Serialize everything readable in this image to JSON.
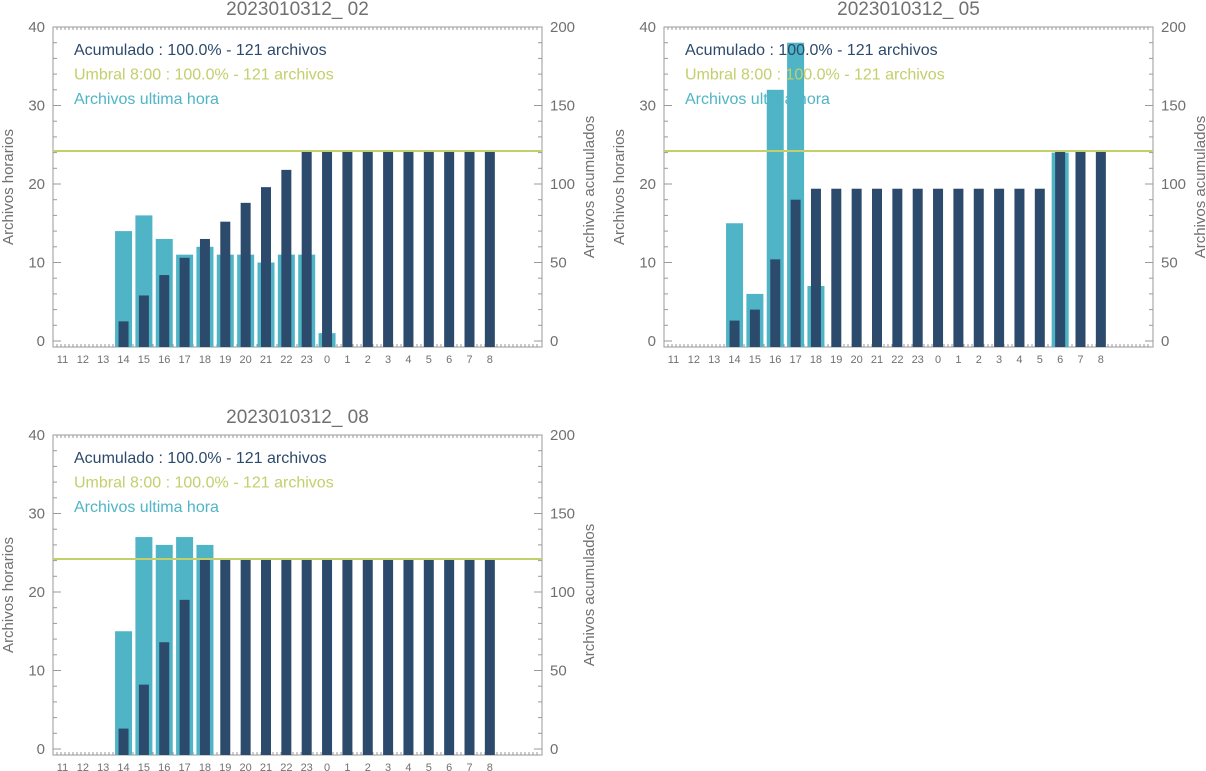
{
  "colors": {
    "hourly": "#4fb5c6",
    "cumulative": "#2c4a6b",
    "threshold": "#c3cf6b",
    "axis": "#9a9a9a",
    "text": "#707070"
  },
  "chart_data": [
    {
      "type": "bar",
      "title": "2023010312_ 02",
      "ylabel_left": "Archivos horarios",
      "ylabel_right": "Archivos acumulados",
      "ylim_left": [
        0,
        40
      ],
      "ylim_right": [
        0,
        200
      ],
      "yticks_left": [
        "0",
        "10",
        "20",
        "30",
        "40"
      ],
      "yticks_right": [
        "0",
        "50",
        "100",
        "150",
        "200"
      ],
      "categories": [
        "11",
        "12",
        "13",
        "14",
        "15",
        "16",
        "17",
        "18",
        "19",
        "20",
        "21",
        "22",
        "23",
        "0",
        "1",
        "2",
        "3",
        "4",
        "5",
        "6",
        "7",
        "8"
      ],
      "legend": [
        {
          "label": "Acumulado : 100.0% - 121 archivos",
          "color_key": "cumulative"
        },
        {
          "label": "Umbral 8:00 : 100.0% - 121 archivos",
          "color_key": "threshold"
        },
        {
          "label": "Archivos ultima hora",
          "color_key": "hourly"
        }
      ],
      "threshold_cumulative": 121,
      "series": [
        {
          "name": "Archivos ultima hora",
          "axis": "left",
          "values": [
            0,
            0,
            0,
            14,
            16,
            13,
            11,
            12,
            11,
            11,
            10,
            11,
            11,
            1,
            0,
            0,
            0,
            0,
            0,
            0,
            0,
            0
          ]
        },
        {
          "name": "Acumulado",
          "axis": "right",
          "values": [
            0,
            0,
            0,
            12.5,
            29,
            42,
            53,
            65,
            76,
            88,
            98,
            109,
            121,
            121,
            121,
            121,
            121,
            121,
            121,
            121,
            121,
            121
          ]
        }
      ]
    },
    {
      "type": "bar",
      "title": "2023010312_ 05",
      "ylabel_left": "Archivos horarios",
      "ylabel_right": "Archivos acumulados",
      "ylim_left": [
        0,
        40
      ],
      "ylim_right": [
        0,
        200
      ],
      "yticks_left": [
        "0",
        "10",
        "20",
        "30",
        "40"
      ],
      "yticks_right": [
        "0",
        "50",
        "100",
        "150",
        "200"
      ],
      "categories": [
        "11",
        "12",
        "13",
        "14",
        "15",
        "16",
        "17",
        "18",
        "19",
        "20",
        "21",
        "22",
        "23",
        "0",
        "1",
        "2",
        "3",
        "4",
        "5",
        "6",
        "7",
        "8"
      ],
      "legend": [
        {
          "label": "Acumulado : 100.0% - 121 archivos",
          "color_key": "cumulative"
        },
        {
          "label": "Umbral 8:00 : 100.0% - 121 archivos",
          "color_key": "threshold"
        },
        {
          "label": "Archivos ultima hora",
          "color_key": "hourly"
        }
      ],
      "threshold_cumulative": 121,
      "series": [
        {
          "name": "Archivos ultima hora",
          "axis": "left",
          "values": [
            0,
            0,
            0,
            15,
            6,
            32,
            38,
            7,
            0,
            0,
            0,
            0,
            0,
            0,
            0,
            0,
            0,
            0,
            0,
            24,
            0,
            0
          ]
        },
        {
          "name": "Acumulado",
          "axis": "right",
          "values": [
            0,
            0,
            0,
            13,
            20,
            52,
            90,
            97,
            97,
            97,
            97,
            97,
            97,
            97,
            97,
            97,
            97,
            97,
            97,
            121,
            121,
            121
          ]
        }
      ]
    },
    {
      "type": "bar",
      "title": "2023010312_ 08",
      "ylabel_left": "Archivos horarios",
      "ylabel_right": "Archivos acumulados",
      "ylim_left": [
        0,
        40
      ],
      "ylim_right": [
        0,
        200
      ],
      "yticks_left": [
        "0",
        "10",
        "20",
        "30",
        "40"
      ],
      "yticks_right": [
        "0",
        "50",
        "100",
        "150",
        "200"
      ],
      "categories": [
        "11",
        "12",
        "13",
        "14",
        "15",
        "16",
        "17",
        "18",
        "19",
        "20",
        "21",
        "22",
        "23",
        "0",
        "1",
        "2",
        "3",
        "4",
        "5",
        "6",
        "7",
        "8"
      ],
      "legend": [
        {
          "label": "Acumulado : 100.0% - 121 archivos",
          "color_key": "cumulative"
        },
        {
          "label": "Umbral 8:00 : 100.0% - 121 archivos",
          "color_key": "threshold"
        },
        {
          "label": "Archivos ultima hora",
          "color_key": "hourly"
        }
      ],
      "threshold_cumulative": 121,
      "series": [
        {
          "name": "Archivos ultima hora",
          "axis": "left",
          "values": [
            0,
            0,
            0,
            15,
            27,
            26,
            27,
            26,
            0,
            0,
            0,
            0,
            0,
            0,
            0,
            0,
            0,
            0,
            0,
            0,
            0,
            0
          ]
        },
        {
          "name": "Acumulado",
          "axis": "right",
          "values": [
            0,
            0,
            0,
            13,
            41,
            68,
            95,
            121,
            121,
            121,
            121,
            121,
            121,
            121,
            121,
            121,
            121,
            121,
            121,
            121,
            121,
            121
          ]
        }
      ]
    }
  ]
}
